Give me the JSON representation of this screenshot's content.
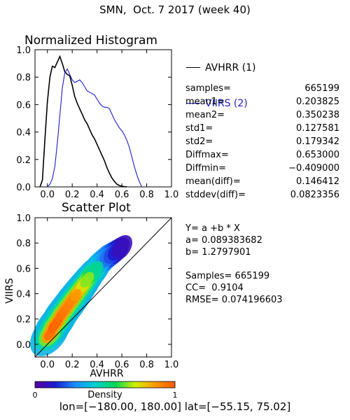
{
  "figure": {
    "title": "SMN,  Oct. 7 2017 (week 40)",
    "footer": "lon=[−180.00, 180.00] lat=[−55.15, 75.02]"
  },
  "histogram": {
    "title": "Normalized Histogram",
    "legend": [
      {
        "label": "AVHRR (1)",
        "color": "#000000"
      },
      {
        "label": "VIIRS (2)",
        "color": "#1c1ccc"
      }
    ],
    "stats": [
      {
        "label": "samples=",
        "value": "665199"
      },
      {
        "label": "mean1=",
        "value": "0.203825"
      },
      {
        "label": "mean2=",
        "value": "0.350238"
      },
      {
        "label": "std1=",
        "value": "0.127581"
      },
      {
        "label": "std2=",
        "value": "0.179342"
      },
      {
        "label": "Diffmax=",
        "value": "0.653000"
      },
      {
        "label": "Diffmin=",
        "value": "−0.409000"
      },
      {
        "label": "mean(diff)=",
        "value": "0.146412"
      },
      {
        "label": "stddev(diff)=",
        "value": "0.0823356"
      }
    ]
  },
  "scatter": {
    "title": "Scatter Plot",
    "xlabel": "AVHRR",
    "ylabel": "VIIRS",
    "regression": [
      "Y= a +b * X",
      "a= 0.089383682",
      "b= 1.2797901",
      "",
      "Samples= 665199",
      "CC=  0.9104",
      "RMSE= 0.074196603"
    ],
    "colorbar": {
      "label": "Density",
      "min_label": "0",
      "max_label": "1"
    }
  },
  "chart_data": [
    {
      "type": "line",
      "title": "Normalized Histogram",
      "xlim": [
        -0.1,
        1.0
      ],
      "ylim": [
        0.0,
        1.0
      ],
      "xticks": [
        "0.0",
        "0.2",
        "0.4",
        "0.6",
        "0.8",
        "1.0"
      ],
      "yticks": [
        "0.0",
        "0.2",
        "0.4",
        "0.6",
        "0.8",
        "1.0"
      ],
      "series": [
        {
          "name": "AVHRR (1)",
          "color": "#000000",
          "x": [
            -0.06,
            -0.04,
            -0.02,
            0.0,
            0.02,
            0.04,
            0.06,
            0.08,
            0.1,
            0.12,
            0.14,
            0.16,
            0.18,
            0.2,
            0.22,
            0.24,
            0.26,
            0.28,
            0.3,
            0.32,
            0.34,
            0.36,
            0.38,
            0.4,
            0.42,
            0.44,
            0.46,
            0.48,
            0.5,
            0.52,
            0.54,
            0.56,
            0.58,
            0.6,
            0.62,
            0.64
          ],
          "y": [
            0.0,
            0.05,
            0.35,
            0.62,
            0.8,
            0.88,
            0.87,
            0.91,
            0.95,
            0.9,
            0.84,
            0.82,
            0.81,
            0.74,
            0.66,
            0.61,
            0.57,
            0.53,
            0.49,
            0.46,
            0.42,
            0.38,
            0.35,
            0.31,
            0.27,
            0.23,
            0.19,
            0.14,
            0.1,
            0.065,
            0.04,
            0.02,
            0.01,
            0.005,
            0.002,
            0.0
          ]
        },
        {
          "name": "VIIRS (2)",
          "color": "#1c1ccc",
          "x": [
            0.0,
            0.02,
            0.04,
            0.06,
            0.08,
            0.1,
            0.12,
            0.14,
            0.16,
            0.18,
            0.2,
            0.22,
            0.24,
            0.26,
            0.28,
            0.3,
            0.32,
            0.34,
            0.36,
            0.38,
            0.4,
            0.42,
            0.44,
            0.46,
            0.48,
            0.5,
            0.52,
            0.54,
            0.56,
            0.58,
            0.6,
            0.62,
            0.64,
            0.66,
            0.68,
            0.7,
            0.72,
            0.74,
            0.76
          ],
          "y": [
            0.0,
            0.02,
            0.06,
            0.15,
            0.32,
            0.52,
            0.72,
            0.83,
            0.86,
            0.82,
            0.78,
            0.76,
            0.77,
            0.78,
            0.76,
            0.73,
            0.7,
            0.69,
            0.68,
            0.67,
            0.64,
            0.61,
            0.59,
            0.58,
            0.58,
            0.57,
            0.53,
            0.49,
            0.46,
            0.43,
            0.41,
            0.38,
            0.34,
            0.29,
            0.22,
            0.15,
            0.09,
            0.04,
            0.0
          ]
        }
      ]
    },
    {
      "type": "heatmap",
      "title": "Scatter Plot",
      "xlabel": "AVHRR",
      "ylabel": "VIIRS",
      "xlim": [
        -0.1,
        1.0
      ],
      "ylim": [
        -0.1,
        1.0
      ],
      "xticks": [
        "0.0",
        "0.2",
        "0.4",
        "0.6",
        "0.8",
        "1.0"
      ],
      "yticks": [
        "0.0",
        "0.2",
        "0.4",
        "0.6",
        "0.8",
        "1.0"
      ],
      "colorscale": {
        "label": "Density",
        "range": [
          0,
          1
        ],
        "colors": [
          "#5a00a0",
          "#1c1cd0",
          "#1e8cff",
          "#00d2d2",
          "#00d85a",
          "#d2f000",
          "#ff9900",
          "#ff5a00"
        ]
      },
      "reference_line": {
        "x": [
          -0.1,
          1.0
        ],
        "y": [
          -0.1,
          1.0
        ]
      },
      "points_summary": {
        "n": 665199,
        "a": 0.089383682,
        "b": 1.2797901,
        "cc": 0.9104,
        "rmse": 0.074196603
      },
      "points": [
        {
          "x": 0.02,
          "y": 0.08,
          "d": 0.95
        },
        {
          "x": 0.05,
          "y": 0.14,
          "d": 0.98
        },
        {
          "x": 0.08,
          "y": 0.18,
          "d": 0.97
        },
        {
          "x": 0.11,
          "y": 0.23,
          "d": 0.95
        },
        {
          "x": 0.14,
          "y": 0.27,
          "d": 0.93
        },
        {
          "x": 0.17,
          "y": 0.31,
          "d": 0.92
        },
        {
          "x": 0.2,
          "y": 0.35,
          "d": 0.9
        },
        {
          "x": 0.23,
          "y": 0.39,
          "d": 0.86
        },
        {
          "x": 0.26,
          "y": 0.43,
          "d": 0.8
        },
        {
          "x": 0.29,
          "y": 0.47,
          "d": 0.74
        },
        {
          "x": 0.32,
          "y": 0.51,
          "d": 0.66
        },
        {
          "x": 0.35,
          "y": 0.55,
          "d": 0.58
        },
        {
          "x": 0.38,
          "y": 0.58,
          "d": 0.5
        },
        {
          "x": 0.41,
          "y": 0.62,
          "d": 0.42
        },
        {
          "x": 0.44,
          "y": 0.65,
          "d": 0.36
        },
        {
          "x": 0.47,
          "y": 0.68,
          "d": 0.3
        },
        {
          "x": 0.5,
          "y": 0.7,
          "d": 0.25
        },
        {
          "x": 0.53,
          "y": 0.72,
          "d": 0.2
        },
        {
          "x": 0.56,
          "y": 0.74,
          "d": 0.14
        },
        {
          "x": 0.59,
          "y": 0.76,
          "d": 0.08
        }
      ]
    }
  ]
}
